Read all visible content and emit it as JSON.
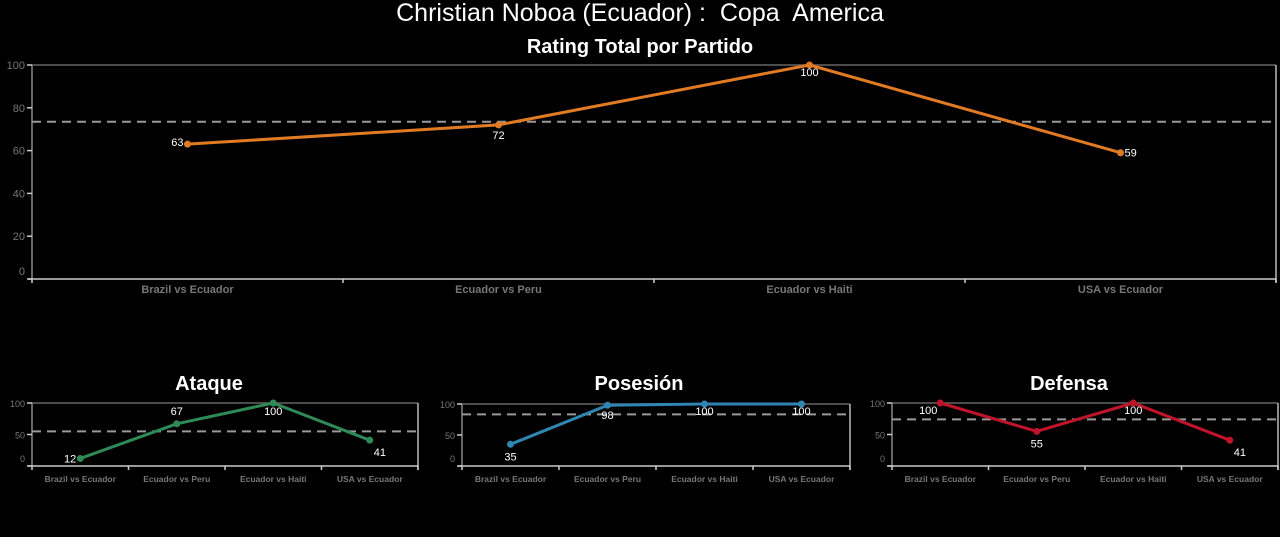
{
  "header": {
    "title": "Christian Noboa (Ecuador) :  Copa  America"
  },
  "colors": {
    "total": "#e07b24",
    "ataque": "#2e8b57",
    "posesion": "#2f86b3",
    "defensa": "#c0142a",
    "axis": "#cccccc",
    "tick_label": "#777777",
    "avg_line": "#999999"
  },
  "chart_data": [
    {
      "type": "line",
      "title": "Rating Total por Partido",
      "categories": [
        "Brazil vs Ecuador",
        "Ecuador vs Peru",
        "Ecuador vs Haiti",
        "USA vs Ecuador"
      ],
      "values": [
        63,
        72,
        100,
        59
      ],
      "average": 73.5,
      "ylim": [
        0,
        100
      ],
      "yticks": [
        0,
        20,
        40,
        60,
        80,
        100
      ],
      "xlabel": "",
      "ylabel": "",
      "color": "#e07b24"
    },
    {
      "type": "line",
      "title": "Ataque",
      "categories": [
        "Brazil vs Ecuador",
        "Ecuador vs Peru",
        "Ecuador vs Haiti",
        "USA vs Ecuador"
      ],
      "values": [
        12,
        67,
        100,
        41
      ],
      "average": 55,
      "ylim": [
        0,
        100
      ],
      "yticks": [
        0,
        50,
        100
      ],
      "color": "#2e8b57"
    },
    {
      "type": "line",
      "title": "Posesión",
      "categories": [
        "Brazil vs Ecuador",
        "Ecuador vs Peru",
        "Ecuador vs Haiti",
        "USA vs Ecuador"
      ],
      "values": [
        35,
        98,
        100,
        100
      ],
      "average": 83.25,
      "ylim": [
        0,
        100
      ],
      "yticks": [
        0,
        50,
        100
      ],
      "color": "#2f86b3"
    },
    {
      "type": "line",
      "title": "Defensa",
      "categories": [
        "Brazil vs Ecuador",
        "Ecuador vs Peru",
        "Ecuador vs Haiti",
        "USA vs Ecuador"
      ],
      "values": [
        100,
        55,
        100,
        41
      ],
      "average": 74,
      "ylim": [
        0,
        100
      ],
      "yticks": [
        0,
        50,
        100
      ],
      "color": "#c0142a"
    }
  ]
}
